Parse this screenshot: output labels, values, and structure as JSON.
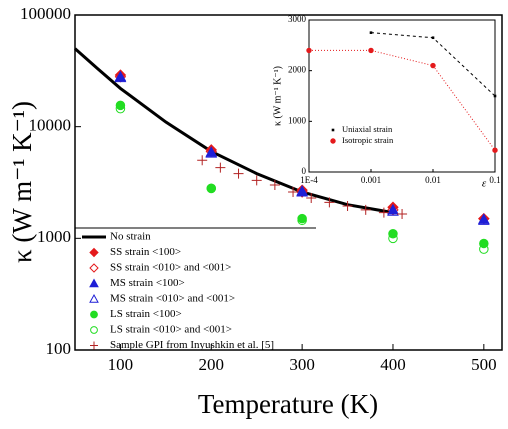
{
  "chart_data": [
    {
      "type": "scatter",
      "x_label": "Temperature (K)",
      "y_label": "κ (W m⁻¹ K⁻¹)",
      "log_y": true,
      "xlim": [
        50,
        520
      ],
      "ylim": [
        100,
        100000
      ],
      "xticks": [
        100,
        200,
        300,
        400,
        500
      ],
      "yticks": [
        100,
        1000,
        10000,
        100000
      ],
      "legend": "lower left",
      "series": [
        {
          "name": "No strain",
          "color": "#000000",
          "marker": "line",
          "x": [
            50,
            75,
            100,
            150,
            200,
            250,
            300,
            350,
            400
          ],
          "values": [
            50000,
            33000,
            22000,
            11000,
            6000,
            3800,
            2600,
            2000,
            1700
          ]
        },
        {
          "name": "SS strain <100>",
          "color": "#e41a1c",
          "marker": "diamond",
          "x": [
            100,
            200,
            300,
            400,
            500
          ],
          "values": [
            29000,
            6200,
            2700,
            1900,
            1500
          ]
        },
        {
          "name": "SS strain  <010> and <001>",
          "color": "#e41a1c",
          "marker": "diamond-open",
          "x": [
            100,
            200,
            300,
            400,
            500
          ],
          "values": [
            28000,
            6000,
            2600,
            1800,
            1500
          ]
        },
        {
          "name": "MS strain <100>",
          "color": "#1f1fd6",
          "marker": "triangle",
          "x": [
            100,
            200,
            300,
            400,
            500
          ],
          "values": [
            28000,
            5900,
            2650,
            1800,
            1480
          ]
        },
        {
          "name": "MS strain <010> and <001>",
          "color": "#1f1fd6",
          "marker": "triangle-open",
          "x": [
            100,
            200,
            300,
            400,
            500
          ],
          "values": [
            27500,
            5800,
            2600,
            1750,
            1450
          ]
        },
        {
          "name": "LS strain <100>",
          "color": "#22dd22",
          "marker": "circle",
          "x": [
            100,
            200,
            300,
            400,
            500
          ],
          "values": [
            15500,
            2800,
            1500,
            1100,
            900
          ]
        },
        {
          "name": "LS strain <010> and <001>",
          "color": "#22dd22",
          "marker": "circle-open",
          "x": [
            100,
            200,
            300,
            400,
            500
          ],
          "values": [
            14500,
            2800,
            1450,
            1000,
            800
          ]
        },
        {
          "name": "Sample GPI from Inyushkin et al. [5]",
          "color": "#b22222",
          "marker": "plus",
          "x": [
            190,
            210,
            230,
            250,
            270,
            290,
            310,
            330,
            350,
            370,
            390,
            410
          ],
          "values": [
            5000,
            4300,
            3800,
            3300,
            3000,
            2600,
            2300,
            2100,
            1950,
            1800,
            1700,
            1650
          ]
        }
      ]
    },
    {
      "type": "line",
      "x_label": "ε",
      "y_label": "κ (W m⁻¹ K⁻¹)",
      "log_x": true,
      "xlim": [
        0.0001,
        0.1
      ],
      "ylim": [
        0,
        3000
      ],
      "xticks": [
        {
          "value": 0.0001,
          "label": "1E-4"
        },
        0.001,
        0.01,
        0.1
      ],
      "yticks": [
        0,
        1000,
        2000,
        3000
      ],
      "series": [
        {
          "name": "Uniaxial strain",
          "color": "#000000",
          "line_style": "dashed",
          "x": [
            0.001,
            0.01,
            0.1
          ],
          "values": [
            2750,
            2650,
            1500
          ]
        },
        {
          "name": "Isotropic strain",
          "color": "#e41a1c",
          "line_style": "dotted",
          "x": [
            0.0001,
            0.001,
            0.01,
            0.1
          ],
          "values": [
            2400,
            2400,
            2100,
            430
          ]
        }
      ]
    }
  ]
}
